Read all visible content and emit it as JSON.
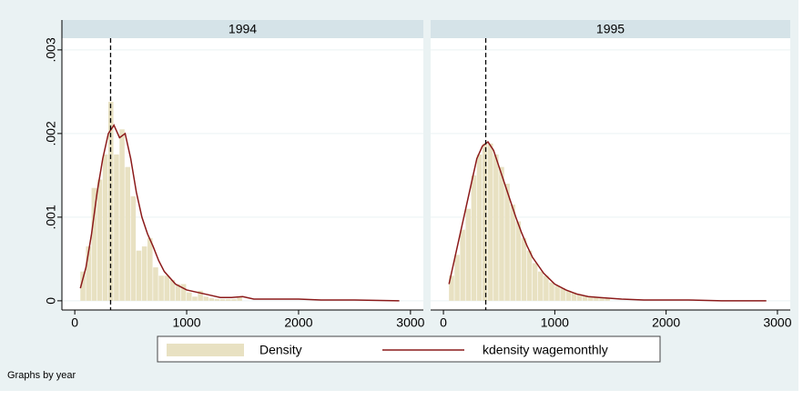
{
  "chart_data": [
    {
      "type": "histogram",
      "title": "1994",
      "bins": [
        50,
        100,
        150,
        200,
        250,
        300,
        350,
        400,
        450,
        500,
        550,
        600,
        650,
        700,
        750,
        800,
        850,
        900,
        950,
        1000,
        1050,
        1100,
        1150,
        1200,
        1250,
        1300,
        1350,
        1400,
        1450,
        1500
      ],
      "values": [
        0.00035,
        0.00065,
        0.00135,
        0.00145,
        0.00175,
        0.00238,
        0.00175,
        0.00205,
        0.0016,
        0.00125,
        0.0006,
        0.00065,
        0.00075,
        0.0004,
        0.0003,
        0.0003,
        0.00025,
        0.0002,
        0.0002,
        0.0001,
        5e-05,
        0.00012,
        5e-05,
        3e-05,
        2e-05,
        2e-05,
        2e-05,
        2e-05,
        5e-05
      ],
      "color": "#e8e1c2",
      "line": {
        "color": "#8b1a1a",
        "x": [
          50,
          100,
          150,
          200,
          250,
          300,
          350,
          400,
          450,
          500,
          550,
          600,
          650,
          700,
          750,
          800,
          900,
          1000,
          1100,
          1200,
          1300,
          1400,
          1500,
          1600,
          1800,
          2000,
          2200,
          2500,
          2900
        ],
        "values": [
          0.00015,
          0.0004,
          0.0008,
          0.0013,
          0.0017,
          0.002,
          0.0021,
          0.00195,
          0.002,
          0.0017,
          0.0013,
          0.001,
          0.0008,
          0.00065,
          0.00048,
          0.00035,
          0.0002,
          0.00013,
          0.0001,
          7e-05,
          4e-05,
          4e-05,
          5e-05,
          2e-05,
          2e-05,
          2e-05,
          1e-05,
          1e-05,
          0
        ]
      },
      "reference_line": 320,
      "xlim": [
        -115,
        3115
      ],
      "xticks": [
        0,
        1000,
        2000,
        3000
      ],
      "ylim": [
        -0.00011,
        0.00314
      ],
      "yticks": [
        0,
        {
          "value": 0.001,
          "label": ".001"
        },
        {
          "value": 0.002,
          "label": ".002"
        },
        {
          "value": 0.003,
          "label": ".003"
        }
      ],
      "grid": true
    },
    {
      "type": "histogram",
      "title": "1995",
      "bins": [
        50,
        100,
        150,
        200,
        250,
        300,
        350,
        400,
        450,
        500,
        550,
        600,
        650,
        700,
        750,
        800,
        850,
        900,
        950,
        1000,
        1050,
        1100,
        1150,
        1200,
        1250,
        1300,
        1350,
        1400,
        1450,
        1500
      ],
      "values": [
        0.0003,
        0.00055,
        0.00085,
        0.0011,
        0.0015,
        0.00175,
        0.00188,
        0.00188,
        0.00175,
        0.0016,
        0.0014,
        0.00115,
        0.00095,
        0.00075,
        0.0006,
        0.00045,
        0.00035,
        0.0003,
        0.00022,
        0.00018,
        0.00015,
        0.00012,
        0.0001,
        8e-05,
        6e-05,
        5e-05,
        4e-05,
        3e-05,
        3e-05
      ],
      "color": "#e8e1c2",
      "line": {
        "color": "#8b1a1a",
        "x": [
          50,
          100,
          150,
          200,
          250,
          300,
          350,
          400,
          450,
          500,
          550,
          600,
          650,
          700,
          750,
          800,
          900,
          1000,
          1100,
          1200,
          1300,
          1400,
          1500,
          1600,
          1800,
          2000,
          2200,
          2500,
          2900
        ],
        "values": [
          0.0002,
          0.0005,
          0.0008,
          0.0011,
          0.0014,
          0.0017,
          0.00185,
          0.0019,
          0.0018,
          0.0016,
          0.0014,
          0.0012,
          0.001,
          0.00082,
          0.00066,
          0.00052,
          0.00033,
          0.0002,
          0.00013,
          8e-05,
          5e-05,
          4e-05,
          3e-05,
          2e-05,
          1e-05,
          1e-05,
          1e-05,
          0,
          0
        ]
      },
      "reference_line": 380,
      "xlim": [
        -115,
        3115
      ],
      "xticks": [
        0,
        1000,
        2000,
        3000
      ]
    }
  ],
  "legend": {
    "histogram": "Density",
    "line": "kdensity wagemonthly"
  },
  "note": "Graphs by year"
}
